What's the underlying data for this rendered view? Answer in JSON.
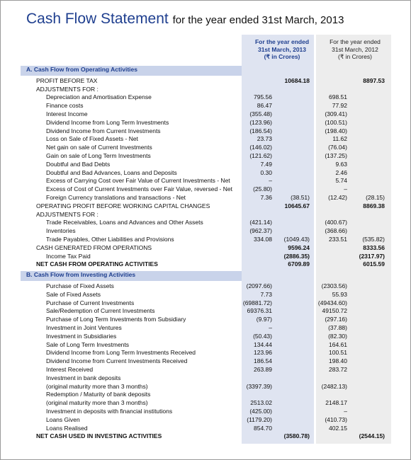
{
  "title": "Cash Flow Statement",
  "subtitle": "for the year ended 31st March, 2013",
  "column_headers": [
    [
      "For the year ended",
      "31st March, 2013",
      "(₹ in Crores)"
    ],
    [
      "For the year ended",
      "31st March, 2012",
      "(₹ in Crores)"
    ]
  ],
  "sections": [
    {
      "title": "A. Cash Flow from Operating Activities",
      "rows": [
        {
          "label": "PROFIT BEFORE TAX",
          "level": 0,
          "values": [
            null,
            "10684.18",
            null,
            "8897.53"
          ],
          "bold_values": true
        },
        {
          "label": "ADJUSTMENTS FOR :",
          "level": 0,
          "values": [
            null,
            null,
            null,
            null
          ]
        },
        {
          "label": "Depreciation and Amortisation Expense",
          "level": 1,
          "values": [
            "795.56",
            null,
            "698.51",
            null
          ]
        },
        {
          "label": "Finance costs",
          "level": 1,
          "values": [
            "86.47",
            null,
            "77.92",
            null
          ]
        },
        {
          "label": "Interest Income",
          "level": 1,
          "values": [
            "(355.48)",
            null,
            "(309.41)",
            null
          ]
        },
        {
          "label": "Dividend Income from Long Term Investments",
          "level": 1,
          "values": [
            "(123.96)",
            null,
            "(100.51)",
            null
          ]
        },
        {
          "label": "Dividend Income from Current Investments",
          "level": 1,
          "values": [
            "(186.54)",
            null,
            "(198.40)",
            null
          ]
        },
        {
          "label": "Loss on Sale of Fixed Assets - Net",
          "level": 1,
          "values": [
            "23.73",
            null,
            "11.62",
            null
          ]
        },
        {
          "label": "Net gain on sale of Current Investments",
          "level": 1,
          "values": [
            "(146.02)",
            null,
            "(76.04)",
            null
          ]
        },
        {
          "label": "Gain on sale of Long Term  Investments",
          "level": 1,
          "values": [
            "(121.62)",
            null,
            "(137.25)",
            null
          ]
        },
        {
          "label": "Doubtful and Bad Debts",
          "level": 1,
          "values": [
            "7.49",
            null,
            "9.63",
            null
          ]
        },
        {
          "label": "Doubtful and Bad Advances, Loans and Deposits",
          "level": 1,
          "values": [
            "0.30",
            null,
            "2.46",
            null
          ]
        },
        {
          "label": "Excess of Carrying Cost over Fair Value of Current Investments - Net",
          "level": 1,
          "values": [
            "–",
            null,
            "5.74",
            null
          ]
        },
        {
          "label": "Excess of Cost of Current Investments over Fair Value, reversed - Net",
          "level": 1,
          "values": [
            "(25.80)",
            null,
            "–",
            null
          ]
        },
        {
          "label": "Foreign Currency translations and transactions - Net",
          "level": 1,
          "values": [
            "7.36",
            "(38.51)",
            "(12.42)",
            "(28.15)"
          ]
        },
        {
          "label": "OPERATING PROFIT BEFORE WORKING CAPITAL CHANGES",
          "level": 0,
          "values": [
            null,
            "10645.67",
            null,
            "8869.38"
          ],
          "bold_values": true
        },
        {
          "label": "ADJUSTMENTS FOR :",
          "level": 0,
          "values": [
            null,
            null,
            null,
            null
          ]
        },
        {
          "label": "Trade Receivables, Loans and Advances and Other Assets",
          "level": 1,
          "values": [
            "(421.14)",
            null,
            "(400.67)",
            null
          ]
        },
        {
          "label": "Inventories",
          "level": 1,
          "values": [
            "(962.37)",
            null,
            "(368.66)",
            null
          ]
        },
        {
          "label": "Trade Payables, Other Liabilities and Provisions",
          "level": 1,
          "values": [
            "334.08",
            "(1049.43)",
            "233.51",
            "(535.82)"
          ]
        },
        {
          "label": "CASH GENERATED FROM OPERATIONS",
          "level": 0,
          "values": [
            null,
            "9596.24",
            null,
            "8333.56"
          ],
          "bold_values": true
        },
        {
          "label": "Income Tax Paid",
          "level": 1,
          "values": [
            null,
            "(2886.35)",
            null,
            "(2317.97)"
          ],
          "bold_values": true
        },
        {
          "label": "NET CASH FROM OPERATING ACTIVITIES",
          "level": 0,
          "values": [
            null,
            "6709.89",
            null,
            "6015.59"
          ],
          "bold": true,
          "bold_values": true
        }
      ]
    },
    {
      "title": "B. Cash Flow from Investing Activities",
      "rows": [
        {
          "label": "Purchase of Fixed Assets",
          "level": 1,
          "values": [
            "(2097.66)",
            null,
            "(2303.56)",
            null
          ]
        },
        {
          "label": "Sale of Fixed Assets",
          "level": 1,
          "values": [
            "7.73",
            null,
            "55.93",
            null
          ]
        },
        {
          "label": "Purchase of Current Investments",
          "level": 1,
          "values": [
            "(69881.72)",
            null,
            "(49434.60)",
            null
          ]
        },
        {
          "label": "Sale/Redemption of Current Investments",
          "level": 1,
          "values": [
            "69376.31",
            null,
            "49150.72",
            null
          ]
        },
        {
          "label": "Purchase of Long Term Investments from Subsidiary",
          "level": 1,
          "values": [
            "(9.97)",
            null,
            "(297.16)",
            null
          ]
        },
        {
          "label": "Investment in Joint Ventures",
          "level": 1,
          "values": [
            "–",
            null,
            "(37.88)",
            null
          ]
        },
        {
          "label": "Investment in Subsidiaries",
          "level": 1,
          "values": [
            "(50.43)",
            null,
            "(82.30)",
            null
          ]
        },
        {
          "label": "Sale of Long Term Investments",
          "level": 1,
          "values": [
            "134.44",
            null,
            "164.61",
            null
          ]
        },
        {
          "label": "Dividend Income from Long Term Investments Received",
          "level": 1,
          "values": [
            "123.96",
            null,
            "100.51",
            null
          ]
        },
        {
          "label": "Dividend Income from Current Investments Received",
          "level": 1,
          "values": [
            "186.54",
            null,
            "198.40",
            null
          ]
        },
        {
          "label": "Interest Received",
          "level": 1,
          "values": [
            "263.89",
            null,
            "283.72",
            null
          ]
        },
        {
          "label": [
            "Investment in bank deposits",
            "(original maturity more than 3 months)"
          ],
          "level": 1,
          "values": [
            "(3397.39)",
            null,
            "(2482.13)",
            null
          ]
        },
        {
          "label": [
            "Redemption / Maturity of bank deposits",
            "(original maturity more than 3 months)"
          ],
          "level": 1,
          "values": [
            "2513.02",
            null,
            "2148.17",
            null
          ]
        },
        {
          "label": "Investment in deposits with financial institutions",
          "level": 1,
          "values": [
            "(425.00)",
            null,
            "–",
            null
          ]
        },
        {
          "label": "Loans Given",
          "level": 1,
          "values": [
            "(1179.20)",
            null,
            "(410.73)",
            null
          ]
        },
        {
          "label": "Loans Realised",
          "level": 1,
          "values": [
            "854.70",
            null,
            "402.15",
            null
          ]
        },
        {
          "label": "NET CASH USED IN INVESTING ACTIVITIES",
          "level": 0,
          "values": [
            null,
            "(3580.78)",
            null,
            "(2544.15)"
          ],
          "bold": true,
          "bold_values": true
        }
      ]
    }
  ]
}
